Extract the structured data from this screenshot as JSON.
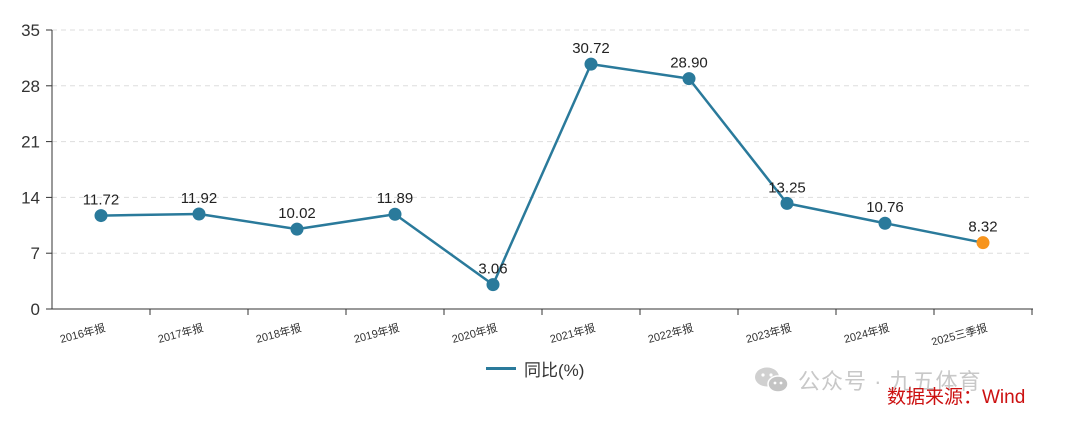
{
  "chart_data": {
    "type": "line",
    "categories": [
      "2016年报",
      "2017年报",
      "2018年报",
      "2019年报",
      "2020年报",
      "2021年报",
      "2022年报",
      "2023年报",
      "2024年报",
      "2025三季报"
    ],
    "series": [
      {
        "name": "同比(%)",
        "values": [
          11.72,
          11.92,
          10.02,
          11.89,
          3.06,
          30.72,
          28.9,
          13.25,
          10.76,
          8.32
        ]
      }
    ],
    "data_labels": [
      "11.72",
      "11.92",
      "10.02",
      "11.89",
      "3.06",
      "30.72",
      "28.90",
      "13.25",
      "10.76",
      "8.32"
    ],
    "ylim": [
      0,
      35
    ],
    "yticks": [
      0,
      7,
      14,
      21,
      28,
      35
    ],
    "grid": true,
    "legend": "bottom-center",
    "colors": {
      "line": "#2a7a9b",
      "highlight": "#f7941d"
    }
  },
  "watermark": {
    "text": "公众号 · 九五体育",
    "icon": "wechat-icon"
  },
  "source": {
    "text": "数据来源：Wind"
  }
}
